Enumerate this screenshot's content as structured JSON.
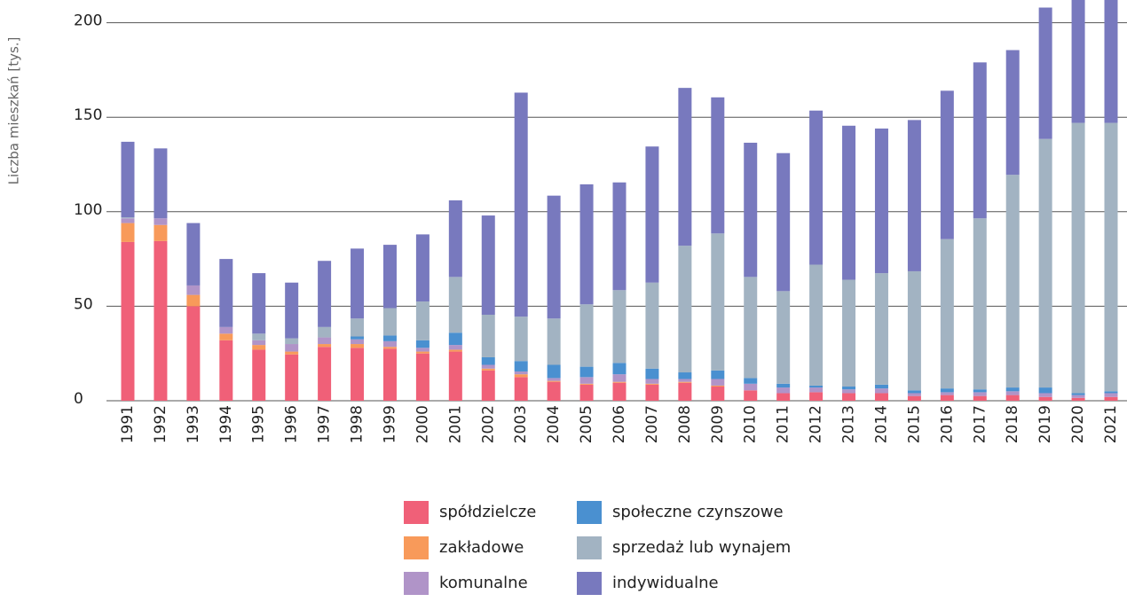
{
  "chart_data": {
    "type": "stacked_bar",
    "y_label": "Liczba mieszkań [tys.]",
    "categories": [
      "1991",
      "1992",
      "1993",
      "1994",
      "1995",
      "1996",
      "1997",
      "1998",
      "1999",
      "2000",
      "2001",
      "2002",
      "2003",
      "2004",
      "2005",
      "2006",
      "2007",
      "2008",
      "2009",
      "2010",
      "2011",
      "2012",
      "2013",
      "2014",
      "2015",
      "2016",
      "2017",
      "2018",
      "2019",
      "2020",
      "2021"
    ],
    "ylim": [
      0,
      212
    ],
    "yticks": [
      0,
      50,
      100,
      150,
      200
    ],
    "grid": true,
    "series": [
      {
        "name": "spółdzielcze",
        "color": "#f06078",
        "values": [
          84,
          84.5,
          50,
          32,
          27,
          24.5,
          28.5,
          28,
          27.5,
          25,
          26,
          16,
          12.5,
          10,
          8.5,
          9.5,
          8.5,
          9.5,
          7.5,
          5.5,
          4,
          4.5,
          4,
          4,
          2.5,
          3,
          2.5,
          3,
          2,
          1.5,
          2
        ]
      },
      {
        "name": "zakładowe",
        "color": "#f89a5a",
        "values": [
          10,
          8.5,
          6,
          3.5,
          2.5,
          1.5,
          1.5,
          2,
          1,
          1,
          1,
          1,
          1.5,
          0.5,
          0.5,
          0.5,
          0.5,
          0.5,
          0.5,
          0,
          0,
          0,
          0,
          0,
          0,
          0,
          0,
          0,
          0,
          0,
          0
        ]
      },
      {
        "name": "komunalne",
        "color": "#b094c8",
        "values": [
          2.5,
          3.5,
          5,
          3.5,
          2.5,
          4,
          3.5,
          2.5,
          3,
          2,
          2.5,
          2,
          1.5,
          1.5,
          3.5,
          4,
          2.5,
          1.5,
          3.5,
          3.5,
          3,
          2.5,
          2,
          2.5,
          1.5,
          1.5,
          2,
          2,
          2,
          1.5,
          2
        ]
      },
      {
        "name": "społeczne czynszowe",
        "color": "#4a90d0",
        "values": [
          0,
          0,
          0,
          0,
          0,
          0,
          0,
          1.5,
          3,
          4,
          6.5,
          4,
          5.5,
          7,
          5.5,
          6,
          5.5,
          3.5,
          4.5,
          3,
          2,
          1,
          1.5,
          2,
          1.5,
          2,
          1.5,
          2,
          3,
          1,
          1
        ]
      },
      {
        "name": "sprzedaż lub wynajem",
        "color": "#a2b3c2",
        "values": [
          0.5,
          0,
          0,
          0,
          3.5,
          3,
          5.5,
          9.5,
          14.5,
          20.5,
          29.5,
          22.5,
          23.5,
          24.5,
          33,
          38.5,
          45.5,
          67,
          72.5,
          53.5,
          49,
          64,
          56.5,
          59,
          63,
          79,
          90.5,
          112.5,
          131.5,
          143,
          142
        ]
      },
      {
        "name": "indywidualne",
        "color": "#7879be",
        "values": [
          40,
          37,
          33,
          36,
          32,
          29.5,
          35,
          37,
          33.5,
          35.5,
          40.5,
          52.5,
          118.5,
          65,
          63.5,
          57,
          72,
          83.5,
          72,
          71,
          73,
          81.5,
          81.5,
          76.5,
          80,
          78.5,
          82.5,
          66,
          69.5,
          75,
          75
        ]
      }
    ]
  }
}
